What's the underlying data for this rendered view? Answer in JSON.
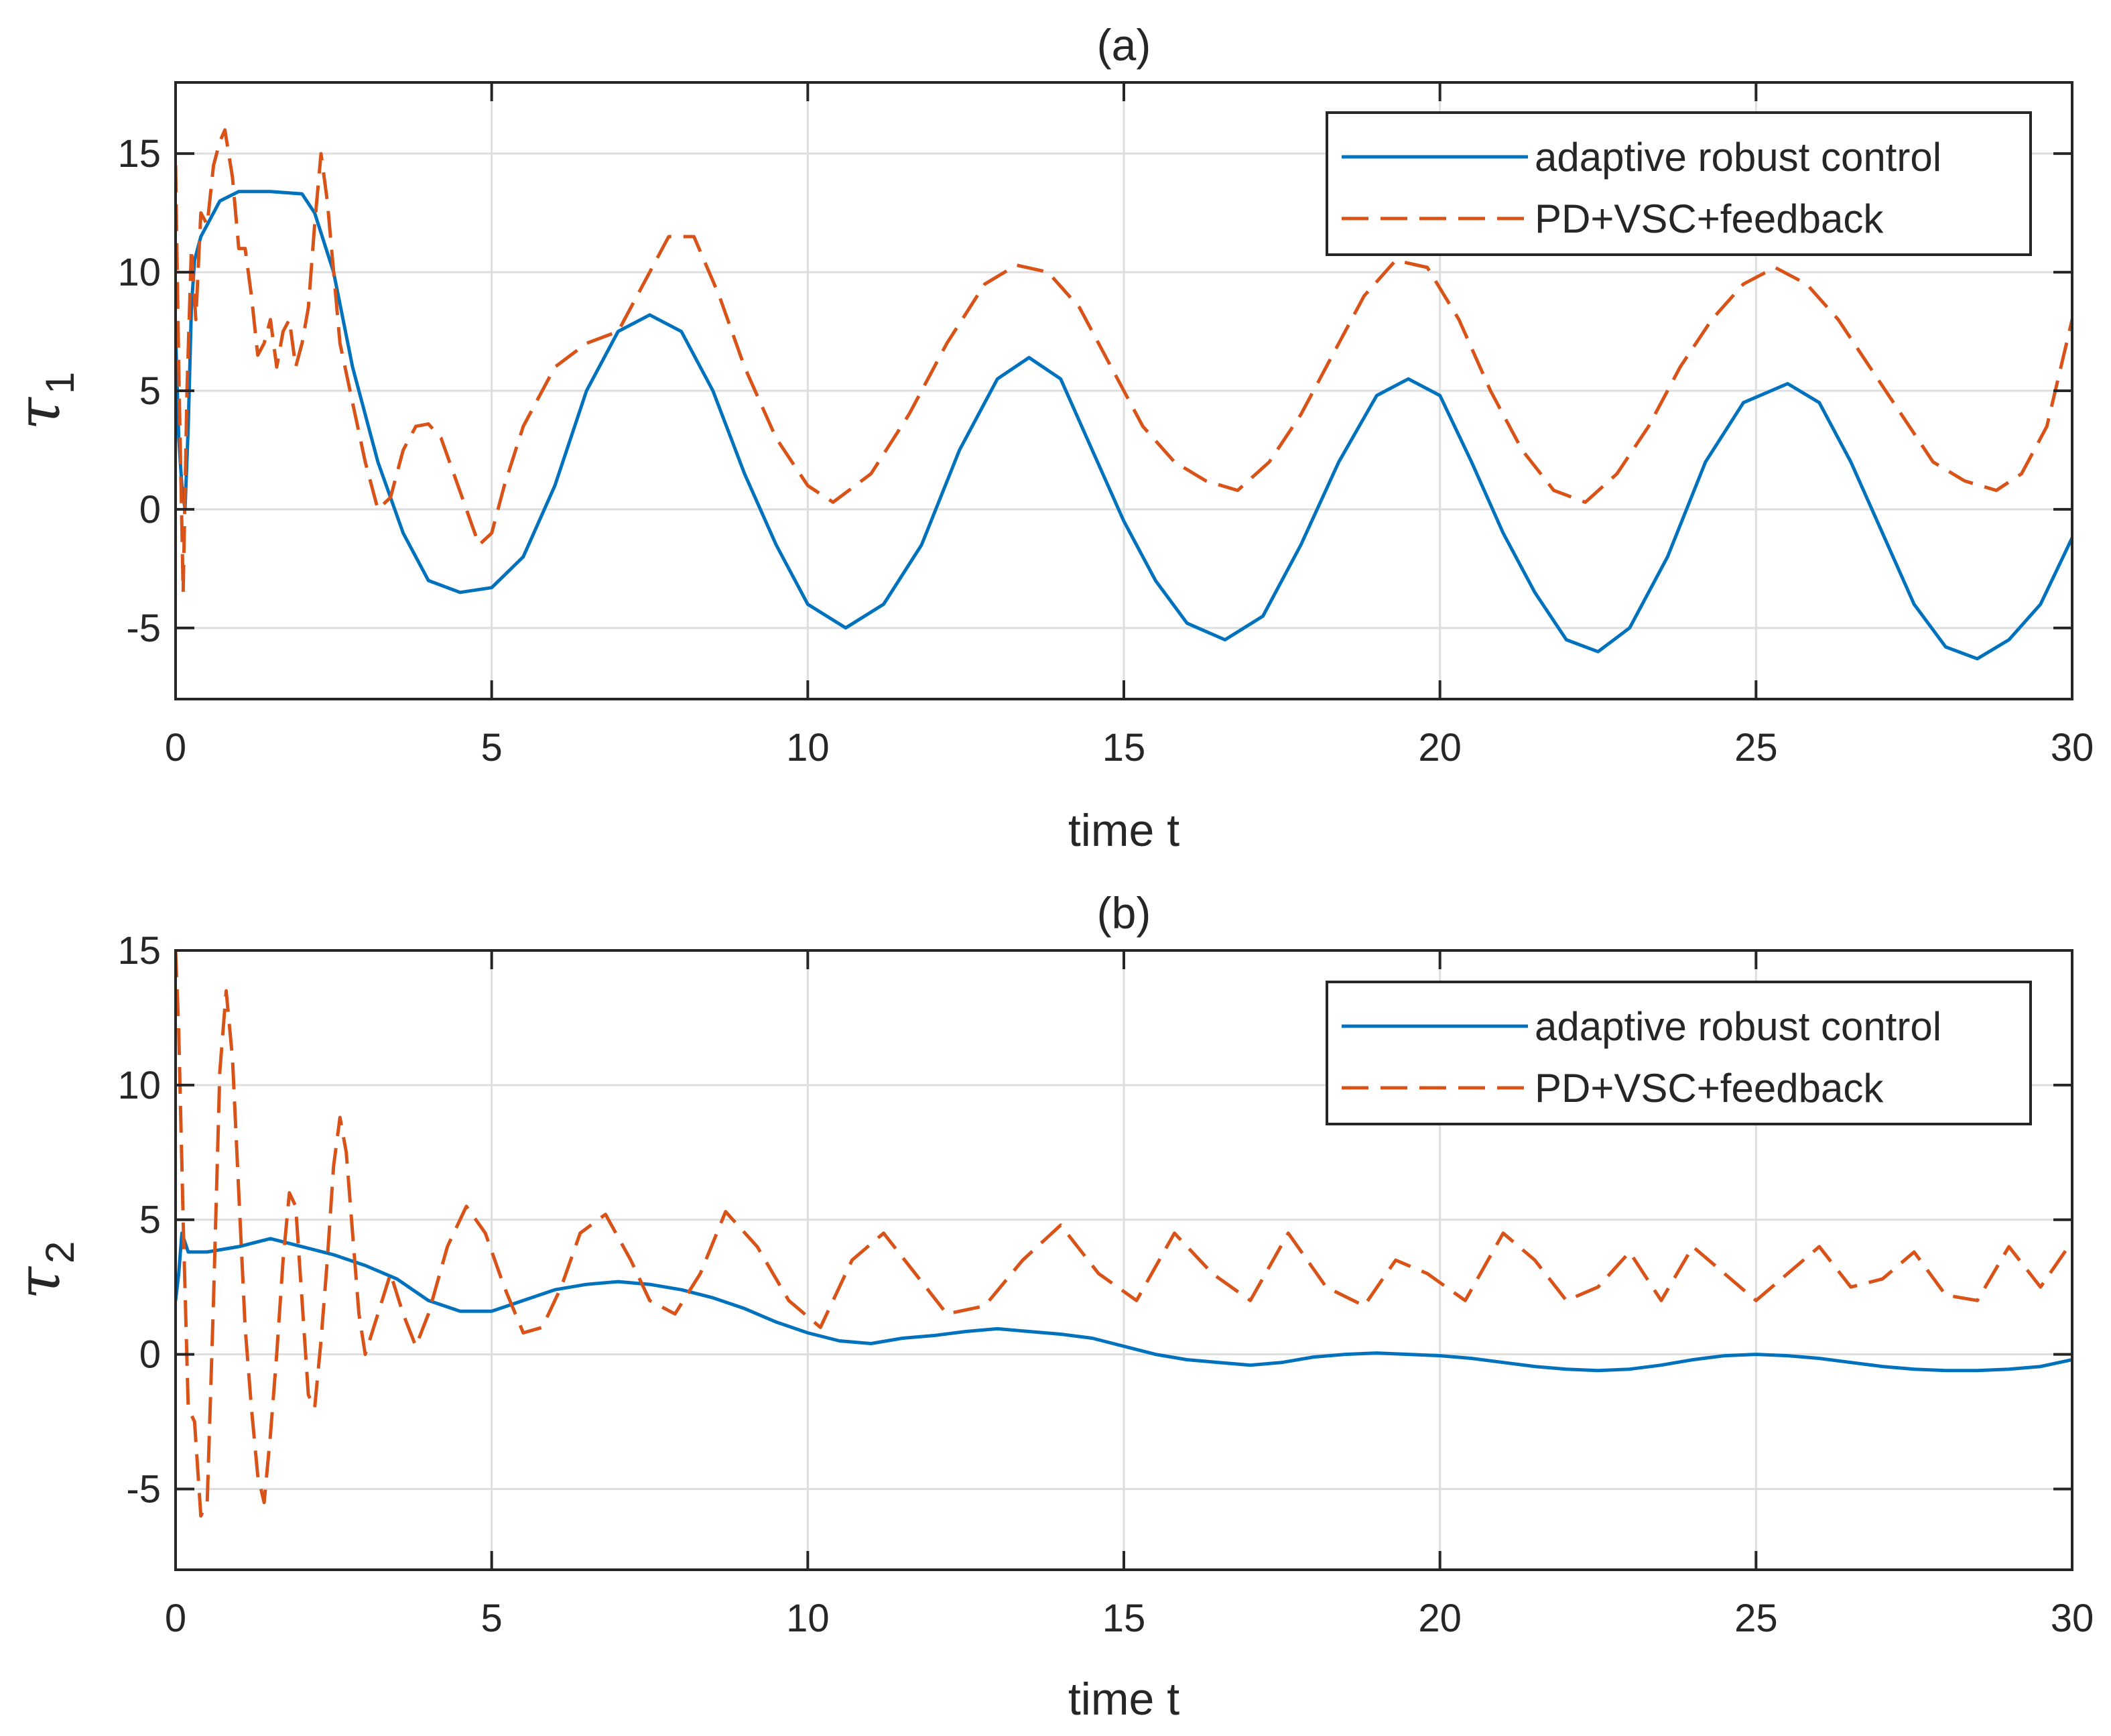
{
  "chart_data": [
    {
      "type": "line",
      "title": "(a)",
      "xlabel": "time t",
      "ylabel": {
        "symbol": "τ",
        "subscript": "1"
      },
      "xlim": [
        0,
        30
      ],
      "ylim": [
        -8,
        18
      ],
      "xticks": [
        0,
        5,
        10,
        15,
        20,
        25,
        30
      ],
      "yticks": [
        -5,
        0,
        5,
        10,
        15
      ],
      "grid": true,
      "legend_position": "top-right",
      "series": [
        {
          "name": "adaptive robust control",
          "color": "#0072BD",
          "style": "solid",
          "x": [
            0,
            0.05,
            0.1,
            0.15,
            0.2,
            0.25,
            0.3,
            0.4,
            0.5,
            0.7,
            1.0,
            1.5,
            2.0,
            2.2,
            2.5,
            2.8,
            3.2,
            3.6,
            4.0,
            4.5,
            5.0,
            5.5,
            6.0,
            6.5,
            7.0,
            7.5,
            8.0,
            8.5,
            9.0,
            9.5,
            10.0,
            10.6,
            11.2,
            11.8,
            12.4,
            13.0,
            13.5,
            14.0,
            14.5,
            15.0,
            15.5,
            16.0,
            16.6,
            17.2,
            17.8,
            18.4,
            19.0,
            19.5,
            20.0,
            20.5,
            21.0,
            21.5,
            22.0,
            22.5,
            23.0,
            23.6,
            24.2,
            24.8,
            25.5,
            26.0,
            26.5,
            27.0,
            27.5,
            28.0,
            28.5,
            29.0,
            29.5,
            30.0
          ],
          "values": [
            7.5,
            3.0,
            1.0,
            0.0,
            3.5,
            8.5,
            10.5,
            11.5,
            12.0,
            13.0,
            13.4,
            13.4,
            13.3,
            12.5,
            10.0,
            6.0,
            2.0,
            -1.0,
            -3.0,
            -3.5,
            -3.3,
            -2.0,
            1.0,
            5.0,
            7.5,
            8.2,
            7.5,
            5.0,
            1.5,
            -1.5,
            -4.0,
            -5.0,
            -4.0,
            -1.5,
            2.5,
            5.5,
            6.4,
            5.5,
            2.5,
            -0.5,
            -3.0,
            -4.8,
            -5.5,
            -4.5,
            -1.5,
            2.0,
            4.8,
            5.5,
            4.8,
            2.0,
            -1.0,
            -3.5,
            -5.5,
            -6.0,
            -5.0,
            -2.0,
            2.0,
            4.5,
            5.3,
            4.5,
            2.0,
            -1.0,
            -4.0,
            -5.8,
            -6.3,
            -5.5,
            -4.0,
            -1.2
          ]
        },
        {
          "name": "PD+VSC+feedback",
          "color": "#D95319",
          "style": "dashed",
          "x": [
            0,
            0.05,
            0.12,
            0.18,
            0.25,
            0.32,
            0.4,
            0.5,
            0.6,
            0.7,
            0.78,
            0.9,
            1.0,
            1.1,
            1.2,
            1.3,
            1.4,
            1.5,
            1.6,
            1.7,
            1.8,
            1.9,
            2.0,
            2.1,
            2.2,
            2.3,
            2.4,
            2.6,
            2.8,
            3.0,
            3.2,
            3.4,
            3.6,
            3.8,
            4.0,
            4.2,
            4.4,
            4.6,
            4.8,
            5.0,
            5.2,
            5.5,
            6.0,
            6.5,
            7.0,
            7.5,
            7.8,
            8.2,
            8.6,
            9.0,
            9.5,
            10.0,
            10.4,
            11.0,
            11.6,
            12.2,
            12.8,
            13.3,
            13.8,
            14.3,
            14.8,
            15.3,
            15.8,
            16.3,
            16.8,
            17.3,
            17.8,
            18.3,
            18.8,
            19.3,
            19.8,
            20.3,
            20.8,
            21.3,
            21.8,
            22.3,
            22.8,
            23.3,
            23.8,
            24.3,
            24.8,
            25.3,
            25.8,
            26.3,
            26.8,
            27.3,
            27.8,
            28.3,
            28.8,
            29.2,
            29.6,
            30.0
          ],
          "values": [
            14.5,
            6.0,
            -3.5,
            5.0,
            11.0,
            8.0,
            12.5,
            12.0,
            14.5,
            15.5,
            16.0,
            14.0,
            11.0,
            11.0,
            9.0,
            6.5,
            7.0,
            8.0,
            6.0,
            7.5,
            8.0,
            6.0,
            7.0,
            8.5,
            12.0,
            15.0,
            13.0,
            7.0,
            4.5,
            2.0,
            0.0,
            0.5,
            2.5,
            3.5,
            3.6,
            3.0,
            1.5,
            0.0,
            -1.5,
            -1.0,
            1.0,
            3.5,
            6.0,
            7.0,
            7.5,
            10.0,
            11.5,
            11.5,
            9.0,
            6.0,
            3.0,
            1.0,
            0.3,
            1.5,
            4.0,
            7.0,
            9.5,
            10.3,
            10.0,
            8.5,
            6.0,
            3.5,
            2.0,
            1.2,
            0.8,
            2.0,
            4.0,
            6.5,
            9.0,
            10.5,
            10.2,
            8.0,
            5.0,
            2.5,
            0.8,
            0.3,
            1.5,
            3.5,
            6.0,
            8.0,
            9.5,
            10.2,
            9.5,
            8.0,
            6.0,
            4.0,
            2.0,
            1.2,
            0.8,
            1.5,
            3.5,
            8.0
          ]
        }
      ]
    },
    {
      "type": "line",
      "title": "(b)",
      "xlabel": "time t",
      "ylabel": {
        "symbol": "τ",
        "subscript": "2"
      },
      "xlim": [
        0,
        30
      ],
      "ylim": [
        -8,
        15
      ],
      "xticks": [
        0,
        5,
        10,
        15,
        20,
        25,
        30
      ],
      "yticks": [
        -5,
        0,
        5,
        10,
        15
      ],
      "grid": true,
      "legend_position": "top-right",
      "series": [
        {
          "name": "adaptive robust control",
          "color": "#0072BD",
          "style": "solid",
          "x": [
            0,
            0.05,
            0.1,
            0.2,
            0.3,
            0.5,
            1.0,
            1.5,
            2.0,
            2.5,
            3.0,
            3.5,
            4.0,
            4.5,
            5.0,
            5.5,
            6.0,
            6.5,
            7.0,
            7.5,
            8.0,
            8.5,
            9.0,
            9.5,
            10.0,
            10.5,
            11.0,
            11.5,
            12.0,
            12.5,
            13.0,
            13.5,
            14.0,
            14.5,
            15.0,
            15.5,
            16.0,
            16.5,
            17.0,
            17.5,
            18.0,
            18.5,
            19.0,
            19.5,
            20.0,
            20.5,
            21.0,
            21.5,
            22.0,
            22.5,
            23.0,
            23.5,
            24.0,
            24.5,
            25.0,
            25.5,
            26.0,
            26.5,
            27.0,
            27.5,
            28.0,
            28.5,
            29.0,
            29.5,
            30.0
          ],
          "values": [
            2.0,
            3.0,
            4.5,
            3.8,
            3.8,
            3.8,
            4.0,
            4.3,
            4.0,
            3.7,
            3.3,
            2.8,
            2.0,
            1.6,
            1.6,
            2.0,
            2.4,
            2.6,
            2.7,
            2.6,
            2.4,
            2.1,
            1.7,
            1.2,
            0.8,
            0.5,
            0.4,
            0.6,
            0.7,
            0.85,
            0.95,
            0.85,
            0.75,
            0.6,
            0.3,
            0.0,
            -0.2,
            -0.3,
            -0.4,
            -0.3,
            -0.1,
            0.0,
            0.05,
            0.0,
            -0.05,
            -0.15,
            -0.3,
            -0.45,
            -0.55,
            -0.6,
            -0.55,
            -0.4,
            -0.2,
            -0.05,
            0.0,
            -0.05,
            -0.15,
            -0.3,
            -0.45,
            -0.55,
            -0.6,
            -0.6,
            -0.55,
            -0.45,
            -0.2
          ]
        },
        {
          "name": "PD+VSC+feedback",
          "color": "#D95319",
          "style": "dashed",
          "x": [
            0,
            0.05,
            0.12,
            0.2,
            0.3,
            0.4,
            0.5,
            0.6,
            0.7,
            0.8,
            0.9,
            1.0,
            1.1,
            1.2,
            1.3,
            1.4,
            1.5,
            1.6,
            1.7,
            1.8,
            1.9,
            2.0,
            2.1,
            2.2,
            2.3,
            2.4,
            2.5,
            2.6,
            2.7,
            2.8,
            2.9,
            3.0,
            3.2,
            3.4,
            3.6,
            3.8,
            4.0,
            4.3,
            4.6,
            4.9,
            5.2,
            5.5,
            5.8,
            6.1,
            6.4,
            6.8,
            7.2,
            7.5,
            7.9,
            8.3,
            8.7,
            9.2,
            9.7,
            10.2,
            10.7,
            11.2,
            11.7,
            12.2,
            12.8,
            13.4,
            14.0,
            14.6,
            15.2,
            15.8,
            16.4,
            17.0,
            17.6,
            18.2,
            18.8,
            19.3,
            19.8,
            20.4,
            21.0,
            21.5,
            22.0,
            22.5,
            23.0,
            23.5,
            24.0,
            24.5,
            25.0,
            25.5,
            26.0,
            26.5,
            27.0,
            27.5,
            28.0,
            28.5,
            29.0,
            29.5,
            30.0
          ],
          "values": [
            15.0,
            12.0,
            5.0,
            -2.0,
            -2.5,
            -6.0,
            -5.5,
            2.0,
            10.5,
            13.5,
            11.0,
            6.0,
            1.0,
            -2.0,
            -4.5,
            -5.5,
            -3.0,
            0.0,
            3.5,
            6.0,
            5.5,
            2.0,
            -1.5,
            -2.0,
            0.5,
            3.5,
            7.0,
            8.8,
            7.5,
            4.5,
            1.5,
            0.0,
            1.5,
            3.0,
            1.5,
            0.3,
            1.5,
            4.0,
            5.5,
            4.5,
            2.5,
            0.8,
            1.0,
            2.5,
            4.5,
            5.2,
            3.5,
            2.0,
            1.5,
            3.0,
            5.3,
            4.0,
            2.0,
            1.0,
            3.5,
            4.5,
            3.0,
            1.5,
            1.8,
            3.5,
            4.8,
            3.0,
            2.0,
            4.5,
            3.0,
            2.0,
            4.5,
            2.5,
            1.8,
            3.5,
            3.0,
            2.0,
            4.5,
            3.5,
            2.0,
            2.5,
            3.8,
            2.0,
            4.0,
            3.0,
            2.0,
            3.0,
            4.0,
            2.5,
            2.8,
            3.8,
            2.2,
            2.0,
            4.0,
            2.5,
            4.2
          ]
        }
      ]
    }
  ]
}
